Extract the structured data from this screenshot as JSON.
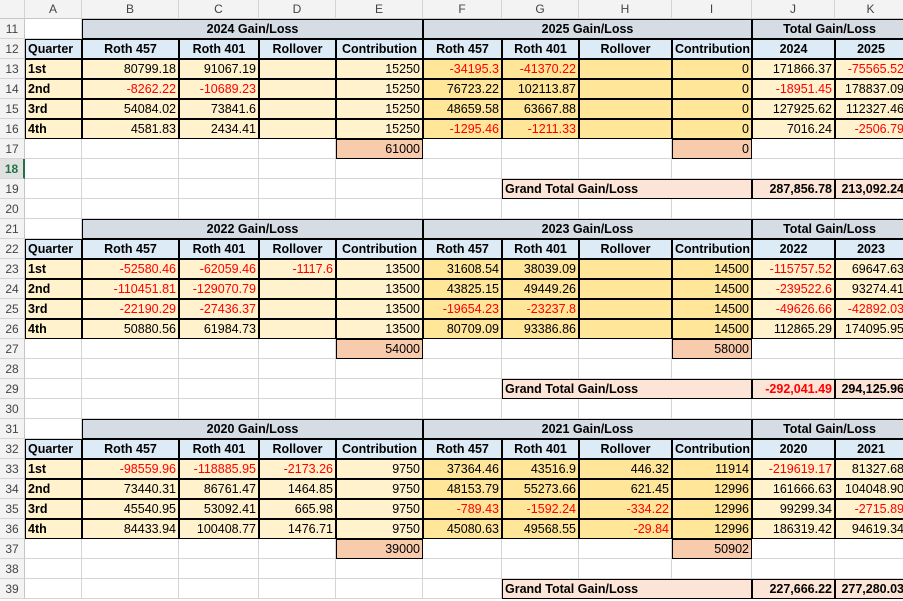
{
  "columns": [
    "A",
    "B",
    "C",
    "D",
    "E",
    "F",
    "G",
    "H",
    "I",
    "J",
    "K"
  ],
  "colors": {
    "cream": "#fff2cc",
    "orange": "#ffe699",
    "peach": "#f8cbad",
    "pink": "#fce4d6",
    "blue": "#ddebf7",
    "grey": "#d6dce4",
    "negative": "#ff0000"
  },
  "blocks": [
    {
      "title_left": "2024 Gain/Loss",
      "title_right": "2025 Gain/Loss",
      "title_total": "Total Gain/Loss",
      "headers": [
        "Quarter",
        "Roth 457",
        "Roth 401",
        "Rollover",
        "Contribution",
        "Roth 457",
        "Roth 401",
        "Rollover",
        "Contribution",
        "2024",
        "2025"
      ],
      "rows": [
        [
          "1st",
          "80799.18",
          "91067.19",
          "",
          "15250",
          "-34195.3",
          "-41370.22",
          "",
          "0",
          "171866.37",
          "-75565.52"
        ],
        [
          "2nd",
          "-8262.22",
          "-10689.23",
          "",
          "15250",
          "76723.22",
          "102113.87",
          "",
          "0",
          "-18951.45",
          "178837.09"
        ],
        [
          "3rd",
          "54084.02",
          "73841.6",
          "",
          "15250",
          "48659.58",
          "63667.88",
          "",
          "0",
          "127925.62",
          "112327.46"
        ],
        [
          "4th",
          "4581.83",
          "2434.41",
          "",
          "15250",
          "-1295.46",
          "-1211.33",
          "",
          "0",
          "7016.24",
          "-2506.79"
        ]
      ],
      "contrib_left": "61000",
      "contrib_right": "0",
      "grand_label": "Grand Total Gain/Loss",
      "grand_left": "287,856.78",
      "grand_right": "213,092.24"
    },
    {
      "title_left": "2022 Gain/Loss",
      "title_right": "2023 Gain/Loss",
      "title_total": "Total Gain/Loss",
      "headers": [
        "Quarter",
        "Roth 457",
        "Roth 401",
        "Rollover",
        "Contribution",
        "Roth 457",
        "Roth 401",
        "Rollover",
        "Contribution",
        "2022",
        "2023"
      ],
      "rows": [
        [
          "1st",
          "-52580.46",
          "-62059.46",
          "-1117.6",
          "13500",
          "31608.54",
          "38039.09",
          "",
          "14500",
          "-115757.52",
          "69647.63"
        ],
        [
          "2nd",
          "-110451.81",
          "-129070.79",
          "",
          "13500",
          "43825.15",
          "49449.26",
          "",
          "14500",
          "-239522.6",
          "93274.41"
        ],
        [
          "3rd",
          "-22190.29",
          "-27436.37",
          "",
          "13500",
          "-19654.23",
          "-23237.8",
          "",
          "14500",
          "-49626.66",
          "-42892.03"
        ],
        [
          "4th",
          "50880.56",
          "61984.73",
          "",
          "13500",
          "80709.09",
          "93386.86",
          "",
          "14500",
          "112865.29",
          "174095.95"
        ]
      ],
      "contrib_left": "54000",
      "contrib_right": "58000",
      "grand_label": "Grand Total Gain/Loss",
      "grand_left": "-292,041.49",
      "grand_right": "294,125.96"
    },
    {
      "title_left": "2020 Gain/Loss",
      "title_right": "2021 Gain/Loss",
      "title_total": "Total Gain/Loss",
      "headers": [
        "Quarter",
        "Roth 457",
        "Roth 401",
        "Rollover",
        "Contribution",
        "Roth 457",
        "Roth 401",
        "Rollover",
        "Contribution",
        "2020",
        "2021"
      ],
      "rows": [
        [
          "1st",
          "-98559.96",
          "-118885.95",
          "-2173.26",
          "9750",
          "37364.46",
          "43516.9",
          "446.32",
          "11914",
          "-219619.17",
          "81327.68"
        ],
        [
          "2nd",
          "73440.31",
          "86761.47",
          "1464.85",
          "9750",
          "48153.79",
          "55273.66",
          "621.45",
          "12996",
          "161666.63",
          "104048.90"
        ],
        [
          "3rd",
          "45540.95",
          "53092.41",
          "665.98",
          "9750",
          "-789.43",
          "-1592.24",
          "-334.22",
          "12996",
          "99299.34",
          "-2715.89"
        ],
        [
          "4th",
          "84433.94",
          "100408.77",
          "1476.71",
          "9750",
          "45080.63",
          "49568.55",
          "-29.84",
          "12996",
          "186319.42",
          "94619.34"
        ]
      ],
      "contrib_left": "39000",
      "contrib_right": "50902",
      "grand_label": "Grand Total Gain/Loss",
      "grand_left": "227,666.22",
      "grand_right": "277,280.03"
    }
  ],
  "row_numbers": [
    "11",
    "12",
    "13",
    "14",
    "15",
    "16",
    "17",
    "18",
    "19",
    "20",
    "21",
    "22",
    "23",
    "24",
    "25",
    "26",
    "27",
    "28",
    "29",
    "30",
    "31",
    "32",
    "33",
    "34",
    "35",
    "36",
    "37",
    "38",
    "39"
  ],
  "active_row": "18"
}
